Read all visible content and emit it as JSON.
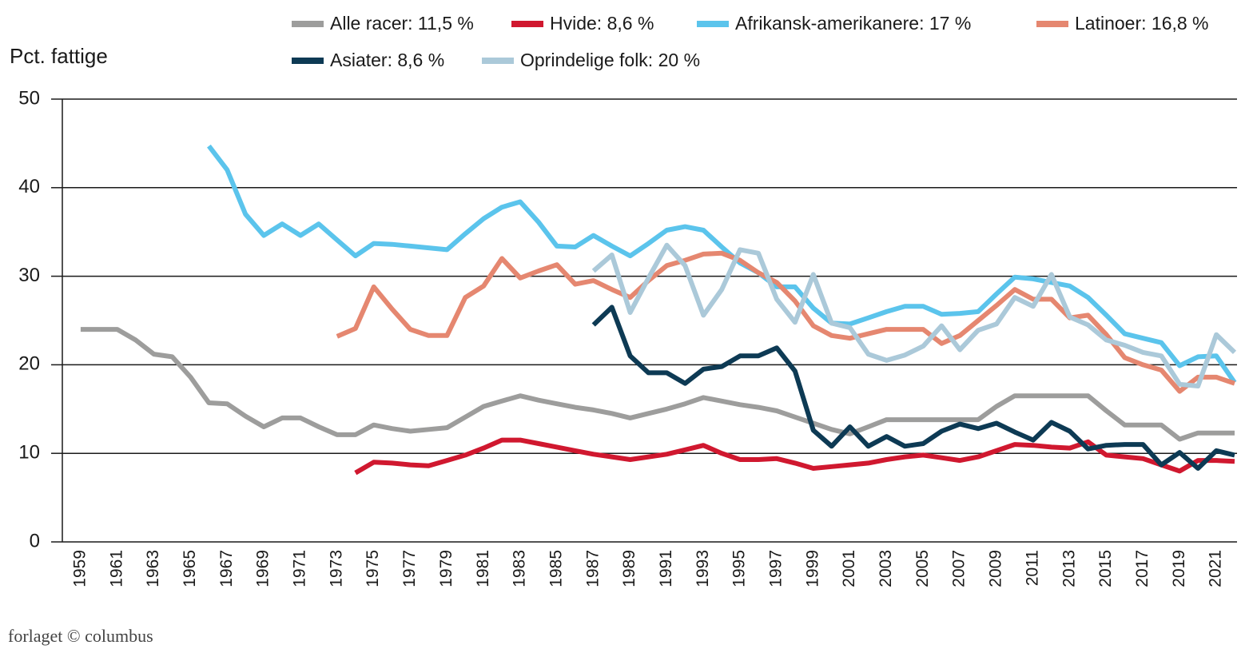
{
  "chart_data": {
    "type": "line",
    "y_label": "Pct. fattige",
    "footer": "forlaget © columbus",
    "legend": "top",
    "grid": true,
    "x": [
      1959,
      1960,
      1961,
      1962,
      1963,
      1964,
      1965,
      1966,
      1967,
      1968,
      1969,
      1970,
      1971,
      1972,
      1973,
      1974,
      1975,
      1976,
      1977,
      1978,
      1979,
      1980,
      1981,
      1982,
      1983,
      1984,
      1985,
      1986,
      1987,
      1988,
      1989,
      1990,
      1991,
      1992,
      1993,
      1994,
      1995,
      1996,
      1997,
      1998,
      1999,
      2000,
      2001,
      2002,
      2003,
      2004,
      2005,
      2006,
      2007,
      2008,
      2009,
      2010,
      2011,
      2012,
      2013,
      2014,
      2015,
      2016,
      2017,
      2018,
      2019,
      2020,
      2021,
      2022
    ],
    "xlim": [
      1958,
      2022
    ],
    "xticks": [
      1959,
      1961,
      1963,
      1965,
      1967,
      1969,
      1971,
      1973,
      1975,
      1977,
      1979,
      1981,
      1983,
      1985,
      1987,
      1989,
      1991,
      1993,
      1995,
      1997,
      1999,
      2001,
      2003,
      2005,
      2007,
      2009,
      2011,
      2013,
      2015,
      2017,
      2019,
      2021
    ],
    "ylim": [
      0,
      50
    ],
    "yticks": [
      0,
      10,
      20,
      30,
      40,
      50
    ],
    "series": [
      {
        "name": "Alle racer: 11,5 %",
        "color": "#9d9d9c",
        "values": [
          24,
          24,
          24,
          22.8,
          21.2,
          20.9,
          18.6,
          15.7,
          15.6,
          14.2,
          13.0,
          14.0,
          14.0,
          13.0,
          12.1,
          12.1,
          13.2,
          12.8,
          12.5,
          12.7,
          12.9,
          14.1,
          15.3,
          15.9,
          16.5,
          16.0,
          15.6,
          15.2,
          14.9,
          14.5,
          14.0,
          14.5,
          15.0,
          15.6,
          16.3,
          15.9,
          15.5,
          15.2,
          14.8,
          14.1,
          13.4,
          12.7,
          12.2,
          13.0,
          13.8,
          13.8,
          13.8,
          13.8,
          13.8,
          13.8,
          15.3,
          16.5,
          16.5,
          16.5,
          16.5,
          16.5,
          14.8,
          13.2,
          13.2,
          13.2,
          11.6,
          12.3,
          12.3,
          12.3
        ]
      },
      {
        "name": "Hvide: 8,6 %",
        "color": "#d0182f",
        "values": [
          null,
          null,
          null,
          null,
          null,
          null,
          null,
          null,
          null,
          null,
          null,
          null,
          null,
          null,
          null,
          7.8,
          9.0,
          8.9,
          8.7,
          8.6,
          9.2,
          9.8,
          10.6,
          11.5,
          11.5,
          11.1,
          10.7,
          10.3,
          9.9,
          9.6,
          9.3,
          9.6,
          9.9,
          10.4,
          10.9,
          10.0,
          9.3,
          9.3,
          9.4,
          8.9,
          8.3,
          8.5,
          8.7,
          8.9,
          9.3,
          9.6,
          9.8,
          9.5,
          9.2,
          9.6,
          10.3,
          11.0,
          10.9,
          10.7,
          10.6,
          11.3,
          9.8,
          9.6,
          9.4,
          8.7,
          8.0,
          9.2,
          9.2,
          9.1
        ]
      },
      {
        "name": "Afrikansk-amerikanere: 17 %",
        "color": "#5bc4ec",
        "values": [
          null,
          null,
          null,
          null,
          null,
          null,
          null,
          44.7,
          42.0,
          37.0,
          34.6,
          35.9,
          34.6,
          35.9,
          34.1,
          32.3,
          33.7,
          33.6,
          33.4,
          33.2,
          33.0,
          34.8,
          36.5,
          37.8,
          38.4,
          36.1,
          33.4,
          33.3,
          34.6,
          33.4,
          32.3,
          33.7,
          35.2,
          35.6,
          35.2,
          33.3,
          31.5,
          30.4,
          28.8,
          28.8,
          26.4,
          24.7,
          24.6,
          25.3,
          26.0,
          26.6,
          26.6,
          25.7,
          25.8,
          26.0,
          28.0,
          29.9,
          29.7,
          29.3,
          28.9,
          27.6,
          25.6,
          23.5,
          23.0,
          22.5,
          19.9,
          20.9,
          21.0,
          18.0
        ]
      },
      {
        "name": "Latinoer: 16,8 %",
        "color": "#e58770",
        "values": [
          null,
          null,
          null,
          null,
          null,
          null,
          null,
          null,
          null,
          null,
          null,
          null,
          null,
          null,
          23.2,
          24.1,
          28.8,
          26.3,
          24.0,
          23.3,
          23.3,
          27.6,
          28.9,
          32.0,
          29.8,
          30.6,
          31.3,
          29.1,
          29.5,
          28.5,
          27.6,
          29.5,
          31.2,
          31.8,
          32.5,
          32.6,
          31.8,
          30.4,
          29.3,
          27.2,
          24.4,
          23.3,
          23.0,
          23.5,
          24.0,
          24.0,
          24.0,
          22.4,
          23.3,
          25.0,
          26.7,
          28.5,
          27.4,
          27.4,
          25.3,
          25.6,
          23.4,
          20.8,
          20.0,
          19.4,
          17.0,
          18.6,
          18.6,
          17.9
        ]
      },
      {
        "name": "Asiater: 8,6 %",
        "color": "#0d3a54",
        "values": [
          null,
          null,
          null,
          null,
          null,
          null,
          null,
          null,
          null,
          null,
          null,
          null,
          null,
          null,
          null,
          null,
          null,
          null,
          null,
          null,
          null,
          null,
          null,
          null,
          null,
          null,
          null,
          null,
          24.5,
          26.5,
          21.0,
          19.1,
          19.1,
          17.9,
          19.5,
          19.8,
          21.0,
          21.0,
          21.9,
          19.3,
          12.6,
          10.8,
          13.0,
          10.8,
          11.9,
          10.8,
          11.1,
          12.5,
          13.3,
          12.8,
          13.4,
          12.4,
          11.5,
          13.5,
          12.5,
          10.5,
          10.9,
          11.0,
          11.0,
          8.7,
          10.1,
          8.3,
          10.3,
          9.8
        ]
      },
      {
        "name": "Oprindelige folk: 20 %",
        "color": "#abc9d9",
        "values": [
          null,
          null,
          null,
          null,
          null,
          null,
          null,
          null,
          null,
          null,
          null,
          null,
          null,
          null,
          null,
          null,
          null,
          null,
          null,
          null,
          null,
          null,
          null,
          null,
          null,
          null,
          null,
          null,
          30.6,
          32.4,
          25.9,
          29.8,
          33.5,
          31.2,
          25.6,
          28.5,
          33.0,
          32.6,
          27.4,
          24.8,
          30.2,
          24.7,
          24.2,
          21.2,
          20.5,
          21.1,
          22.1,
          24.4,
          21.7,
          23.9,
          24.6,
          27.6,
          26.6,
          30.2,
          25.4,
          24.5,
          22.8,
          22.2,
          21.4,
          21.0,
          17.8,
          17.6,
          23.4,
          21.4
        ]
      }
    ]
  }
}
